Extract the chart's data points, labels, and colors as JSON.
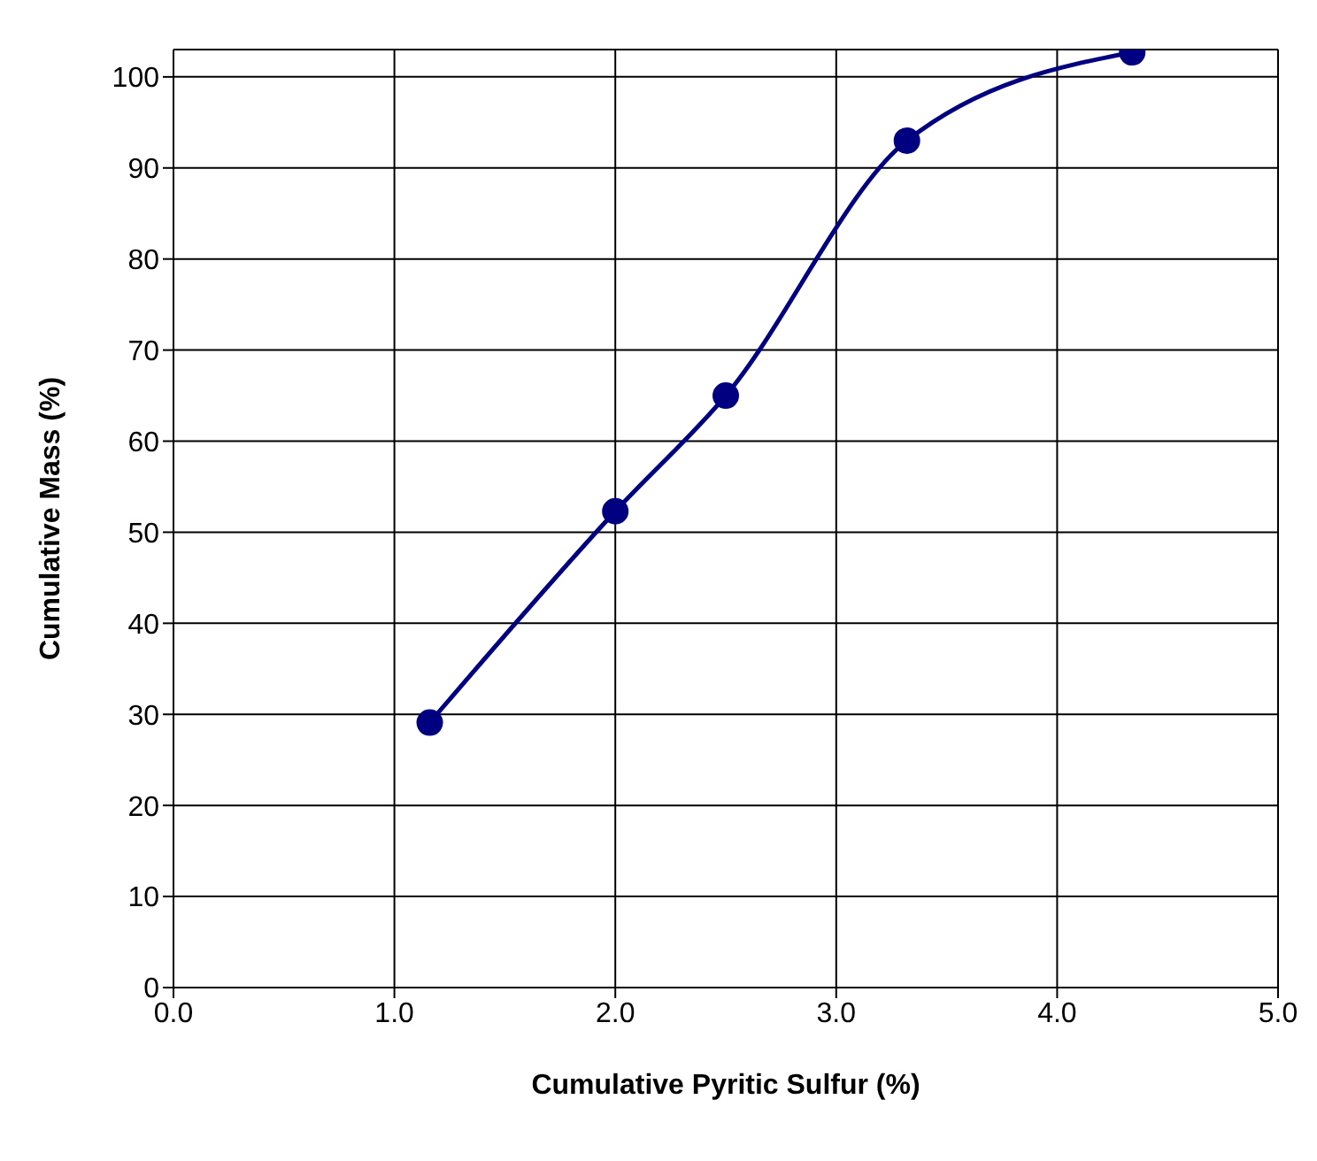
{
  "chart_data": {
    "type": "line",
    "xlabel": "Cumulative Pyritic Sulfur (%)",
    "ylabel": "Cumulative Mass (%)",
    "x": [
      1.16,
      2.0,
      2.5,
      3.32,
      4.34
    ],
    "series": [
      {
        "color": "#000080",
        "values": [
          29.1,
          52.3,
          65.0,
          93.0,
          102.7
        ]
      }
    ],
    "xlim": [
      0,
      5
    ],
    "xticks": [
      {
        "value": 0,
        "label": "0.0"
      },
      {
        "value": 1,
        "label": "1.0"
      },
      {
        "value": 2,
        "label": "2.0"
      },
      {
        "value": 3,
        "label": "3.0"
      },
      {
        "value": 4,
        "label": "4.0"
      },
      {
        "value": 5,
        "label": "5.0"
      }
    ],
    "ylim": [
      0,
      103
    ],
    "yticks": [
      0,
      10,
      20,
      30,
      40,
      50,
      60,
      70,
      80,
      90,
      100
    ],
    "grid": true,
    "marker": "circle",
    "line_style": "solid"
  }
}
